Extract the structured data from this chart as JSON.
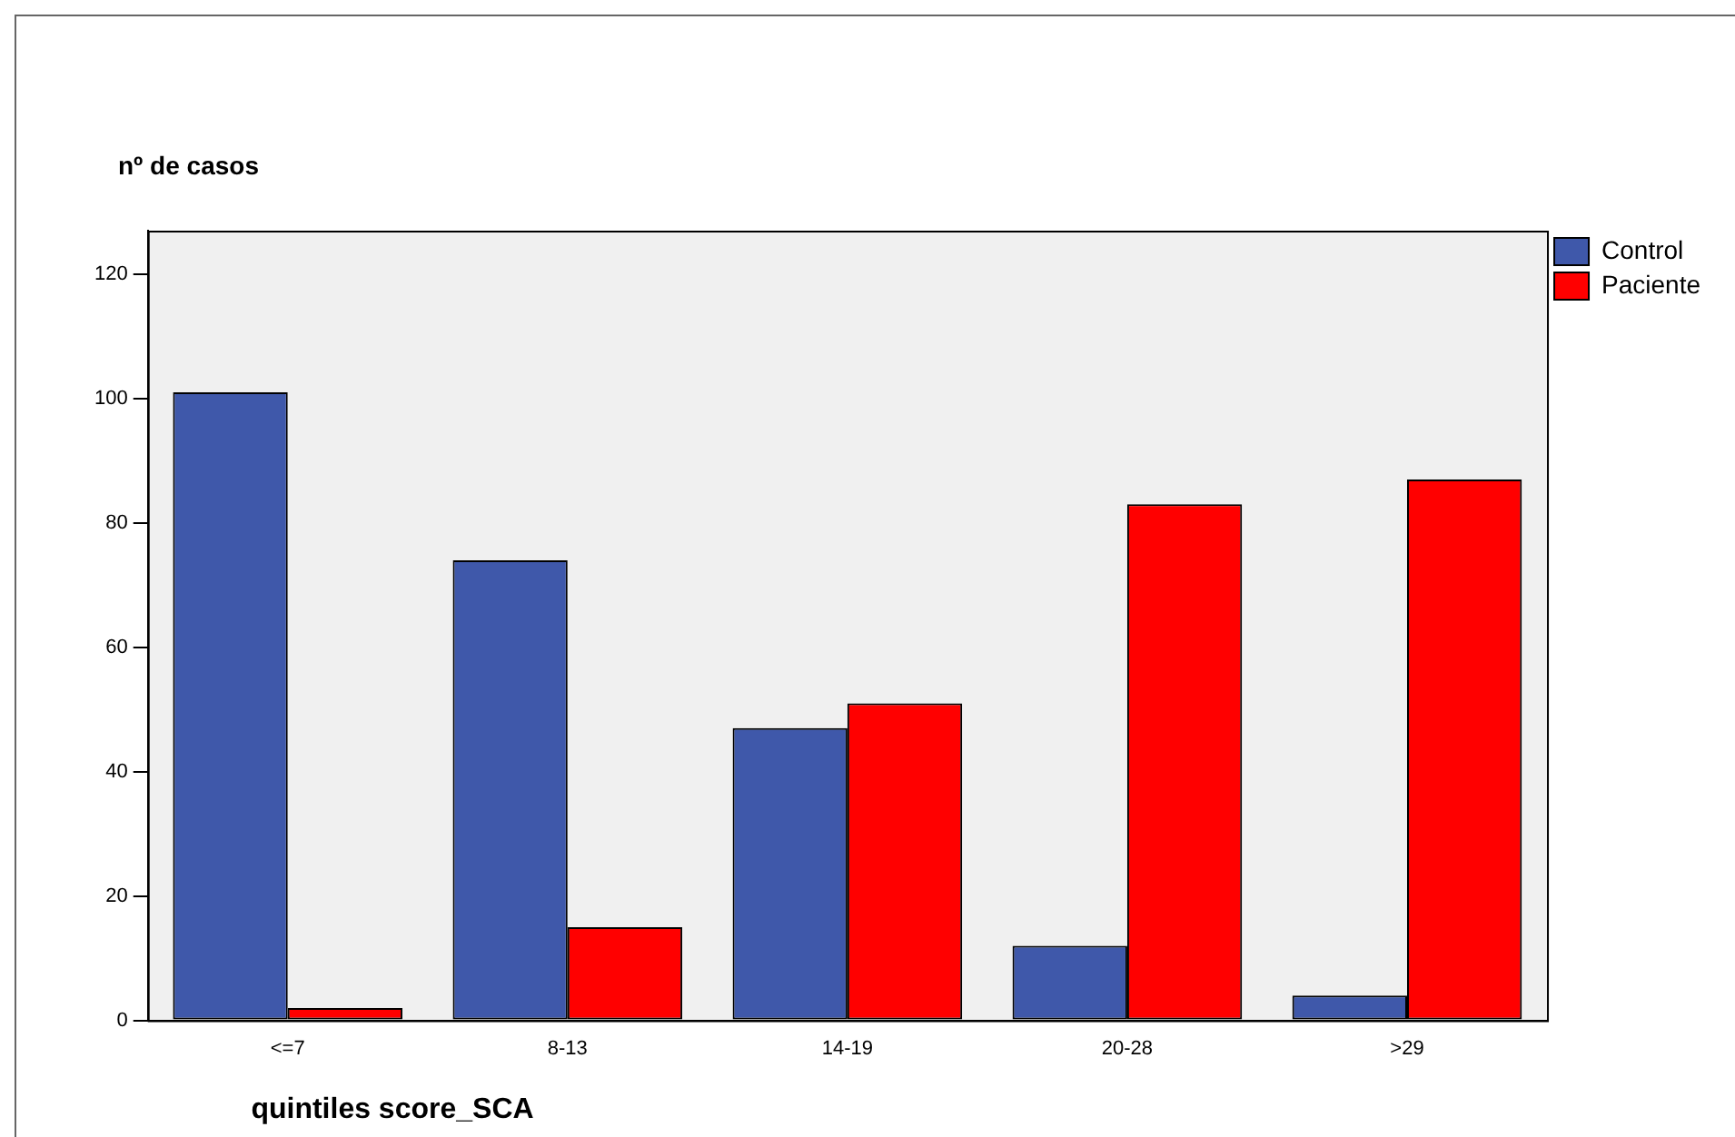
{
  "chart_data": {
    "type": "bar",
    "ylabel": "nº de casos",
    "xlabel": "quintiles score_SCA",
    "categories": [
      "<=7",
      "8-13",
      "14-19",
      "20-28",
      ">29"
    ],
    "series": [
      {
        "name": "Control",
        "color": "#3f58aa",
        "values": [
          101,
          74,
          47,
          12,
          4
        ]
      },
      {
        "name": "Paciente",
        "color": "#ff0000",
        "values": [
          2,
          15,
          51,
          83,
          87
        ]
      }
    ],
    "ylim": [
      0,
      127
    ],
    "yticks": [
      0,
      20,
      40,
      60,
      80,
      100,
      120
    ],
    "grid": false,
    "legend": "top right"
  }
}
